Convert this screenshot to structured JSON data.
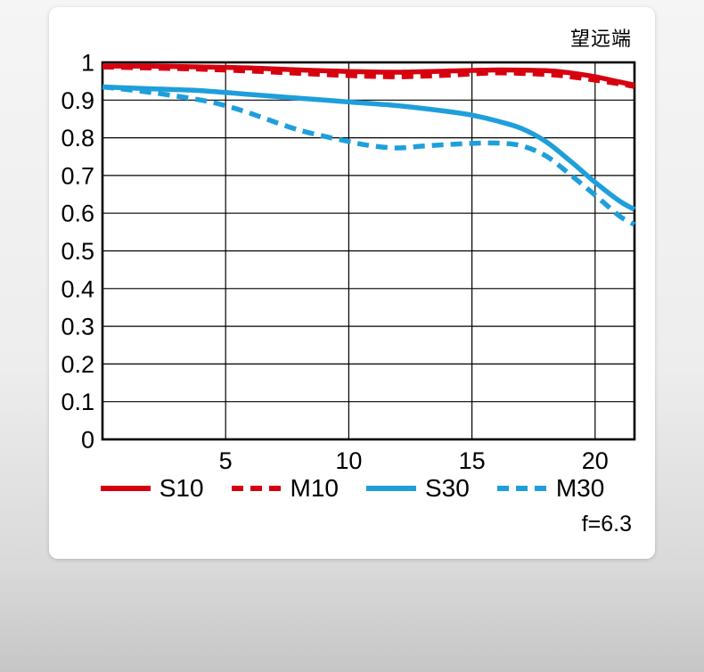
{
  "chart_data": {
    "type": "line",
    "title": "望远端",
    "annotation": "f=6.3",
    "xlabel": "",
    "ylabel": "",
    "xlim": [
      0,
      21.6
    ],
    "ylim": [
      0,
      1
    ],
    "xticks": [
      5,
      10,
      15,
      20
    ],
    "xtick_labels": [
      "5",
      "10",
      "15",
      "20"
    ],
    "yticks": [
      0,
      0.1,
      0.2,
      0.3,
      0.4,
      0.5,
      0.6,
      0.7,
      0.8,
      0.9,
      1
    ],
    "ytick_labels": [
      "0",
      "0.1",
      "0.2",
      "0.3",
      "0.4",
      "0.5",
      "0.6",
      "0.7",
      "0.8",
      "0.9",
      "1"
    ],
    "grid": true,
    "legend_position": "bottom",
    "colors": {
      "red": "#d7000f",
      "blue": "#1e9fdb",
      "grid": "#000000"
    },
    "series": [
      {
        "name": "S10",
        "color": "#d7000f",
        "style": "solid",
        "x": [
          0,
          2,
          4,
          6,
          8,
          10,
          12,
          14,
          16,
          18,
          19,
          20,
          21,
          21.6
        ],
        "y": [
          0.99,
          0.99,
          0.988,
          0.985,
          0.98,
          0.976,
          0.974,
          0.977,
          0.98,
          0.978,
          0.972,
          0.962,
          0.948,
          0.94
        ]
      },
      {
        "name": "M10",
        "color": "#d7000f",
        "style": "dashed",
        "x": [
          0,
          2,
          4,
          6,
          8,
          10,
          12,
          14,
          16,
          18,
          19,
          20,
          21,
          21.6
        ],
        "y": [
          0.988,
          0.985,
          0.982,
          0.977,
          0.971,
          0.965,
          0.962,
          0.966,
          0.972,
          0.968,
          0.962,
          0.953,
          0.943,
          0.936
        ]
      },
      {
        "name": "S30",
        "color": "#1e9fdb",
        "style": "solid",
        "x": [
          0,
          2,
          4,
          6,
          8,
          10,
          12,
          14,
          15,
          16,
          17,
          18,
          19,
          20,
          21,
          21.6
        ],
        "y": [
          0.935,
          0.93,
          0.925,
          0.915,
          0.905,
          0.895,
          0.885,
          0.87,
          0.86,
          0.845,
          0.825,
          0.79,
          0.738,
          0.682,
          0.632,
          0.61
        ]
      },
      {
        "name": "M30",
        "color": "#1e9fdb",
        "style": "dashed",
        "x": [
          0,
          2,
          4,
          5,
          6,
          8,
          10,
          11,
          12,
          13,
          14,
          15,
          16,
          17,
          18,
          19,
          20,
          21,
          21.6
        ],
        "y": [
          0.935,
          0.92,
          0.9,
          0.885,
          0.865,
          0.82,
          0.79,
          0.778,
          0.773,
          0.778,
          0.782,
          0.785,
          0.786,
          0.779,
          0.752,
          0.702,
          0.648,
          0.592,
          0.57
        ]
      }
    ]
  }
}
